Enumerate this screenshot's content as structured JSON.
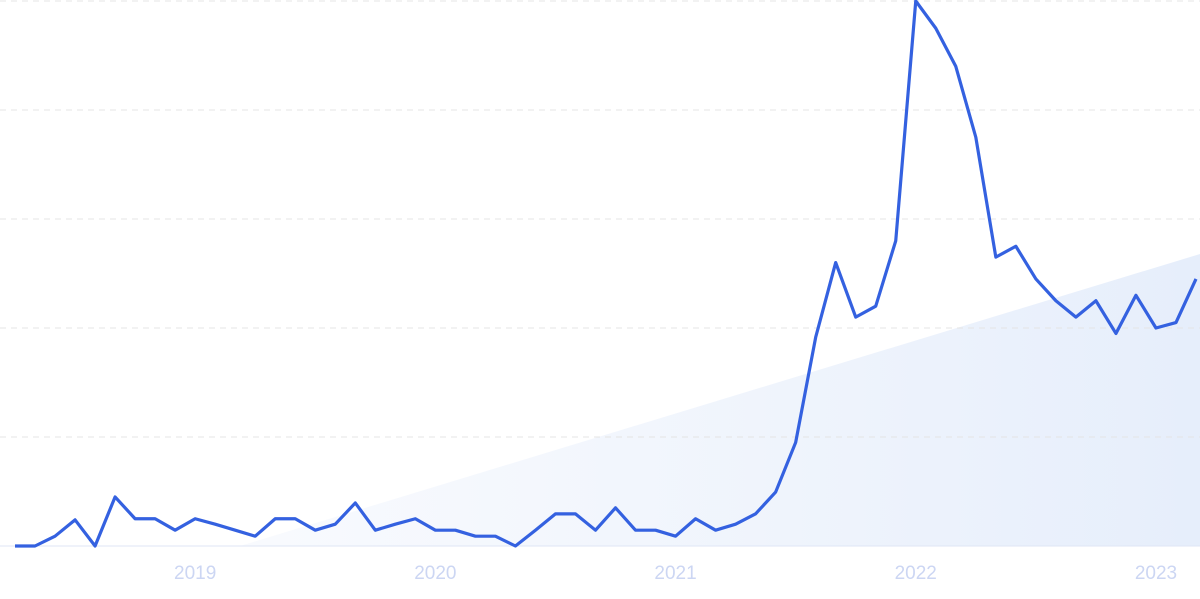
{
  "chart_data": {
    "type": "line",
    "categories": [
      null,
      null,
      null,
      null,
      null,
      null,
      null,
      null,
      null,
      "2019",
      null,
      null,
      null,
      null,
      null,
      null,
      null,
      null,
      null,
      null,
      null,
      "2020",
      null,
      null,
      null,
      null,
      null,
      null,
      null,
      null,
      null,
      null,
      null,
      "2021",
      null,
      null,
      null,
      null,
      null,
      null,
      null,
      null,
      null,
      null,
      null,
      "2022",
      null,
      null,
      null,
      null,
      null,
      null,
      null,
      null,
      null,
      null,
      null,
      "2023",
      null,
      null
    ],
    "series": [
      {
        "color": "#3461e0",
        "values": [
          0,
          0,
          1.8,
          4.8,
          0,
          9,
          5,
          5,
          2.9,
          5,
          4,
          2.9,
          1.8,
          5,
          5,
          2.9,
          4,
          7.9,
          2.9,
          4,
          5,
          2.9,
          2.9,
          1.8,
          1.8,
          0,
          2.9,
          5.9,
          5.9,
          2.9,
          7,
          2.9,
          2.9,
          1.8,
          5,
          2.9,
          4,
          5.9,
          9.9,
          19,
          38.3,
          52,
          42,
          44,
          56,
          100,
          95,
          88,
          75,
          53,
          55,
          49,
          45,
          42,
          45,
          39,
          46,
          40,
          41,
          49
        ]
      }
    ],
    "ylim": [
      0,
      100
    ],
    "yticks": [
      0,
      20,
      40,
      60,
      80,
      100
    ],
    "grid": true
  }
}
